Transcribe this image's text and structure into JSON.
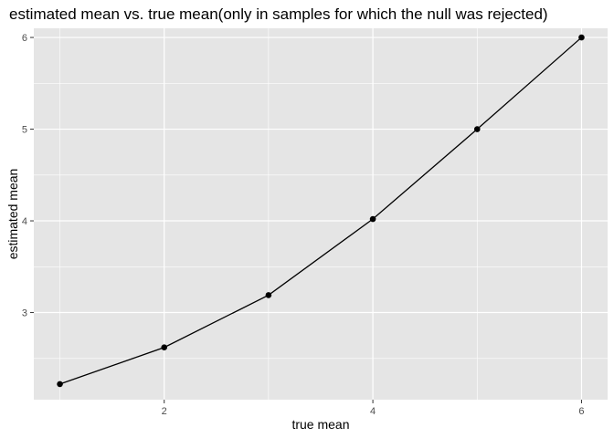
{
  "chart_data": {
    "type": "line",
    "title": "estimated mean vs. true mean(only in samples for which the null was rejected)",
    "xlabel": "true mean",
    "ylabel": "estimated mean",
    "x": [
      1,
      2,
      3,
      4,
      5,
      6
    ],
    "y": [
      2.22,
      2.62,
      3.19,
      4.02,
      5.0,
      6.0
    ],
    "xlim": [
      0.75,
      6.25
    ],
    "ylim": [
      2.05,
      6.1
    ],
    "x_ticks": [
      2,
      4,
      6
    ],
    "y_ticks": [
      3,
      4,
      5,
      6
    ],
    "grid": true,
    "colors": {
      "panel": "#e5e5e5",
      "grid": "#ffffff",
      "line": "#000000",
      "point": "#000000"
    }
  }
}
